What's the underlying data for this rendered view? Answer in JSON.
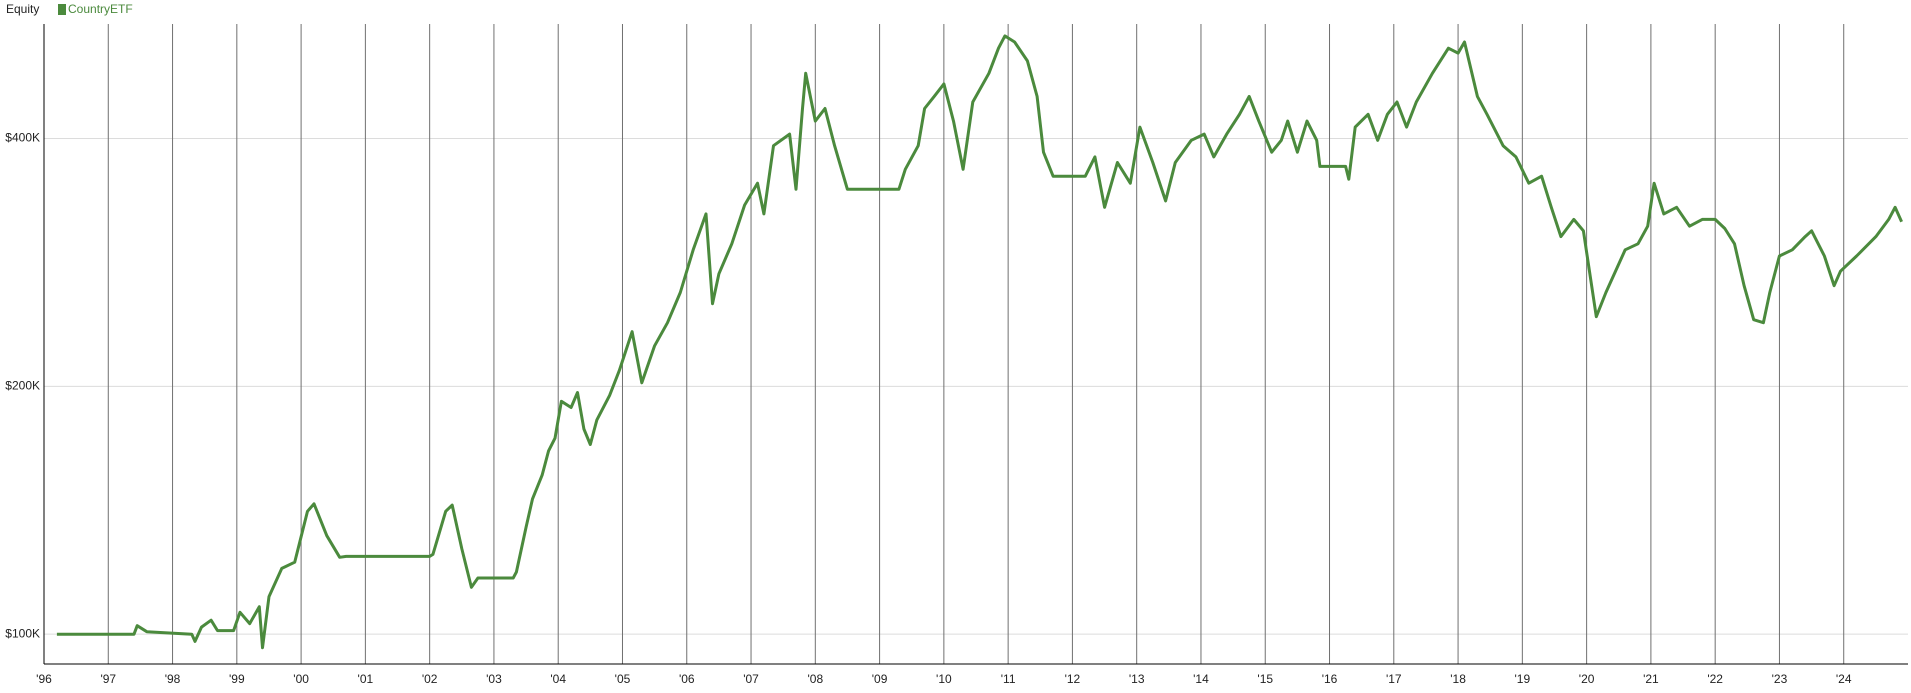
{
  "chart_data": {
    "type": "line",
    "title": "Equity",
    "log_scale": true,
    "grid": true,
    "x": [
      1996.2,
      1997.4,
      1997.45,
      1997.6,
      1998.3,
      1998.35,
      1998.45,
      1998.6,
      1998.7,
      1998.95,
      1999.05,
      1999.2,
      1999.35,
      1999.4,
      1999.5,
      1999.7,
      1999.9,
      2000.1,
      2000.2,
      2000.4,
      2000.6,
      2000.7,
      2001.0,
      2002.0,
      2002.05,
      2002.25,
      2002.35,
      2002.5,
      2002.65,
      2002.75,
      2003.3,
      2003.35,
      2003.5,
      2003.6,
      2003.75,
      2003.85,
      2003.95,
      2004.05,
      2004.2,
      2004.3,
      2004.4,
      2004.5,
      2004.6,
      2004.8,
      2004.95,
      2005.15,
      2005.3,
      2005.5,
      2005.7,
      2005.9,
      2006.1,
      2006.3,
      2006.4,
      2006.5,
      2006.7,
      2006.9,
      2007.1,
      2007.2,
      2007.35,
      2007.6,
      2007.7,
      2007.8,
      2007.85,
      2008.0,
      2008.15,
      2008.3,
      2008.5,
      2009.3,
      2009.4,
      2009.6,
      2009.7,
      2009.85,
      2010.0,
      2010.15,
      2010.3,
      2010.45,
      2010.7,
      2010.85,
      2010.95,
      2011.1,
      2011.3,
      2011.45,
      2011.55,
      2011.7,
      2012.2,
      2012.35,
      2012.5,
      2012.7,
      2012.9,
      2013.05,
      2013.25,
      2013.45,
      2013.6,
      2013.85,
      2014.05,
      2014.2,
      2014.4,
      2014.6,
      2014.75,
      2014.9,
      2015.1,
      2015.25,
      2015.35,
      2015.5,
      2015.65,
      2015.8,
      2015.85,
      2016.25,
      2016.3,
      2016.4,
      2016.6,
      2016.75,
      2016.9,
      2017.05,
      2017.2,
      2017.35,
      2017.6,
      2017.85,
      2018.0,
      2018.1,
      2018.3,
      2018.45,
      2018.7,
      2018.9,
      2019.1,
      2019.3,
      2019.45,
      2019.6,
      2019.8,
      2019.95,
      2020.15,
      2020.3,
      2020.45,
      2020.6,
      2020.8,
      2020.95,
      2021.05,
      2021.2,
      2021.4,
      2021.6,
      2021.8,
      2022.0,
      2022.15,
      2022.3,
      2022.45,
      2022.6,
      2022.75,
      2022.85,
      2023.0,
      2023.2,
      2023.4,
      2023.5,
      2023.7,
      2023.85,
      2023.95,
      2024.2,
      2024.5,
      2024.7,
      2024.8,
      2024.9
    ],
    "series": [
      {
        "name": "CountryETF",
        "color": "#4b8a3d",
        "values": [
          100000,
          100000,
          102400,
          100700,
          100000,
          98000,
          102000,
          104000,
          101000,
          101000,
          106300,
          103000,
          108000,
          96300,
          111100,
          120200,
          122300,
          141000,
          144000,
          131700,
          124000,
          124300,
          124300,
          124300,
          125000,
          141000,
          143500,
          127000,
          114000,
          117000,
          117000,
          119000,
          134900,
          146000,
          156000,
          167000,
          173000,
          191800,
          188500,
          196600,
          177500,
          170000,
          182000,
          195000,
          209000,
          233000,
          202000,
          224000,
          239000,
          260000,
          293000,
          324000,
          252000,
          274000,
          298000,
          332000,
          353000,
          324000,
          392000,
          405000,
          347000,
          435000,
          480000,
          420000,
          435000,
          392000,
          347000,
          347000,
          367000,
          392000,
          435000,
          450000,
          466000,
          420000,
          367000,
          443000,
          480000,
          515000,
          533000,
          524000,
          497000,
          450000,
          385000,
          360000,
          360000,
          380000,
          330000,
          374000,
          353000,
          413000,
          374000,
          336000,
          374000,
          398000,
          405000,
          380000,
          405000,
          428000,
          450000,
          420000,
          385000,
          398000,
          420000,
          385000,
          420000,
          398000,
          370000,
          370000,
          357000,
          413000,
          428000,
          398000,
          428000,
          443000,
          413000,
          443000,
          480000,
          515000,
          508000,
          524000,
          450000,
          428000,
          392000,
          380000,
          353000,
          360000,
          330000,
          304000,
          319000,
          309000,
          243000,
          260000,
          276000,
          293000,
          298000,
          313000,
          353000,
          324000,
          330000,
          313000,
          319000,
          319000,
          311000,
          298000,
          265000,
          241000,
          239000,
          260000,
          288000,
          293000,
          304000,
          309000,
          288000,
          265000,
          276000,
          288000,
          304000,
          319000,
          330000,
          317000
        ]
      }
    ],
    "xlim": [
      1996,
      2025
    ],
    "xticks": [
      {
        "value": 1996,
        "label": "'96"
      },
      {
        "value": 1997,
        "label": "'97"
      },
      {
        "value": 1998,
        "label": "'98"
      },
      {
        "value": 1999,
        "label": "'99"
      },
      {
        "value": 2000,
        "label": "'00"
      },
      {
        "value": 2001,
        "label": "'01"
      },
      {
        "value": 2002,
        "label": "'02"
      },
      {
        "value": 2003,
        "label": "'03"
      },
      {
        "value": 2004,
        "label": "'04"
      },
      {
        "value": 2005,
        "label": "'05"
      },
      {
        "value": 2006,
        "label": "'06"
      },
      {
        "value": 2007,
        "label": "'07"
      },
      {
        "value": 2008,
        "label": "'08"
      },
      {
        "value": 2009,
        "label": "'09"
      },
      {
        "value": 2010,
        "label": "'10"
      },
      {
        "value": 2011,
        "label": "'11"
      },
      {
        "value": 2012,
        "label": "'12"
      },
      {
        "value": 2013,
        "label": "'13"
      },
      {
        "value": 2014,
        "label": "'14"
      },
      {
        "value": 2015,
        "label": "'15"
      },
      {
        "value": 2016,
        "label": "'16"
      },
      {
        "value": 2017,
        "label": "'17"
      },
      {
        "value": 2018,
        "label": "'18"
      },
      {
        "value": 2019,
        "label": "'19"
      },
      {
        "value": 2020,
        "label": "'20"
      },
      {
        "value": 2021,
        "label": "'21"
      },
      {
        "value": 2022,
        "label": "'22"
      },
      {
        "value": 2023,
        "label": "'23"
      },
      {
        "value": 2024,
        "label": "'24"
      }
    ],
    "ylim": [
      92000,
      551000
    ],
    "yticks": [
      {
        "value": 100000,
        "label": "$100K"
      },
      {
        "value": 200000,
        "label": "$200K"
      },
      {
        "value": 400000,
        "label": "$400K"
      }
    ]
  }
}
